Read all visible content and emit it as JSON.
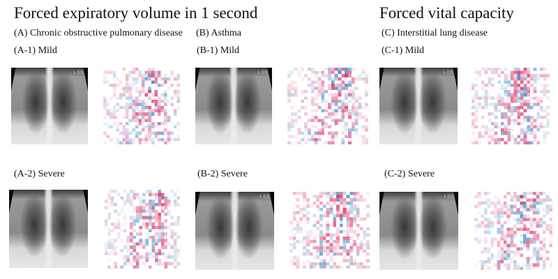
{
  "figure": {
    "headers": {
      "fev1": "Forced expiratory volume in 1 second",
      "fvc": "Forced vital capacity"
    },
    "groups": [
      {
        "label": "(A) Chronic obstructive pulmonary disease",
        "mild": "(A-1) Mild",
        "severe": "(A-2) Severe"
      },
      {
        "label": "(B) Asthma",
        "mild": "(B-1) Mild",
        "severe": "(B-2) Severe"
      },
      {
        "label": "(C) Interstitial lung disease",
        "mild": "(C-1) Mild",
        "severe": "(C-2) Severe"
      }
    ],
    "xray_marker": "L 立位",
    "heatmap_colors": {
      "positive": "#d6134f",
      "negative": "#2c7bbf",
      "neutral": "#ffffff"
    }
  },
  "panels": [
    {
      "id": "A-1",
      "type": "chest-radiograph + attribution heatmap"
    },
    {
      "id": "A-2",
      "type": "chest-radiograph + attribution heatmap"
    },
    {
      "id": "B-1",
      "type": "chest-radiograph + attribution heatmap"
    },
    {
      "id": "B-2",
      "type": "chest-radiograph + attribution heatmap"
    },
    {
      "id": "C-1",
      "type": "chest-radiograph + attribution heatmap"
    },
    {
      "id": "C-2",
      "type": "chest-radiograph + attribution heatmap"
    }
  ]
}
